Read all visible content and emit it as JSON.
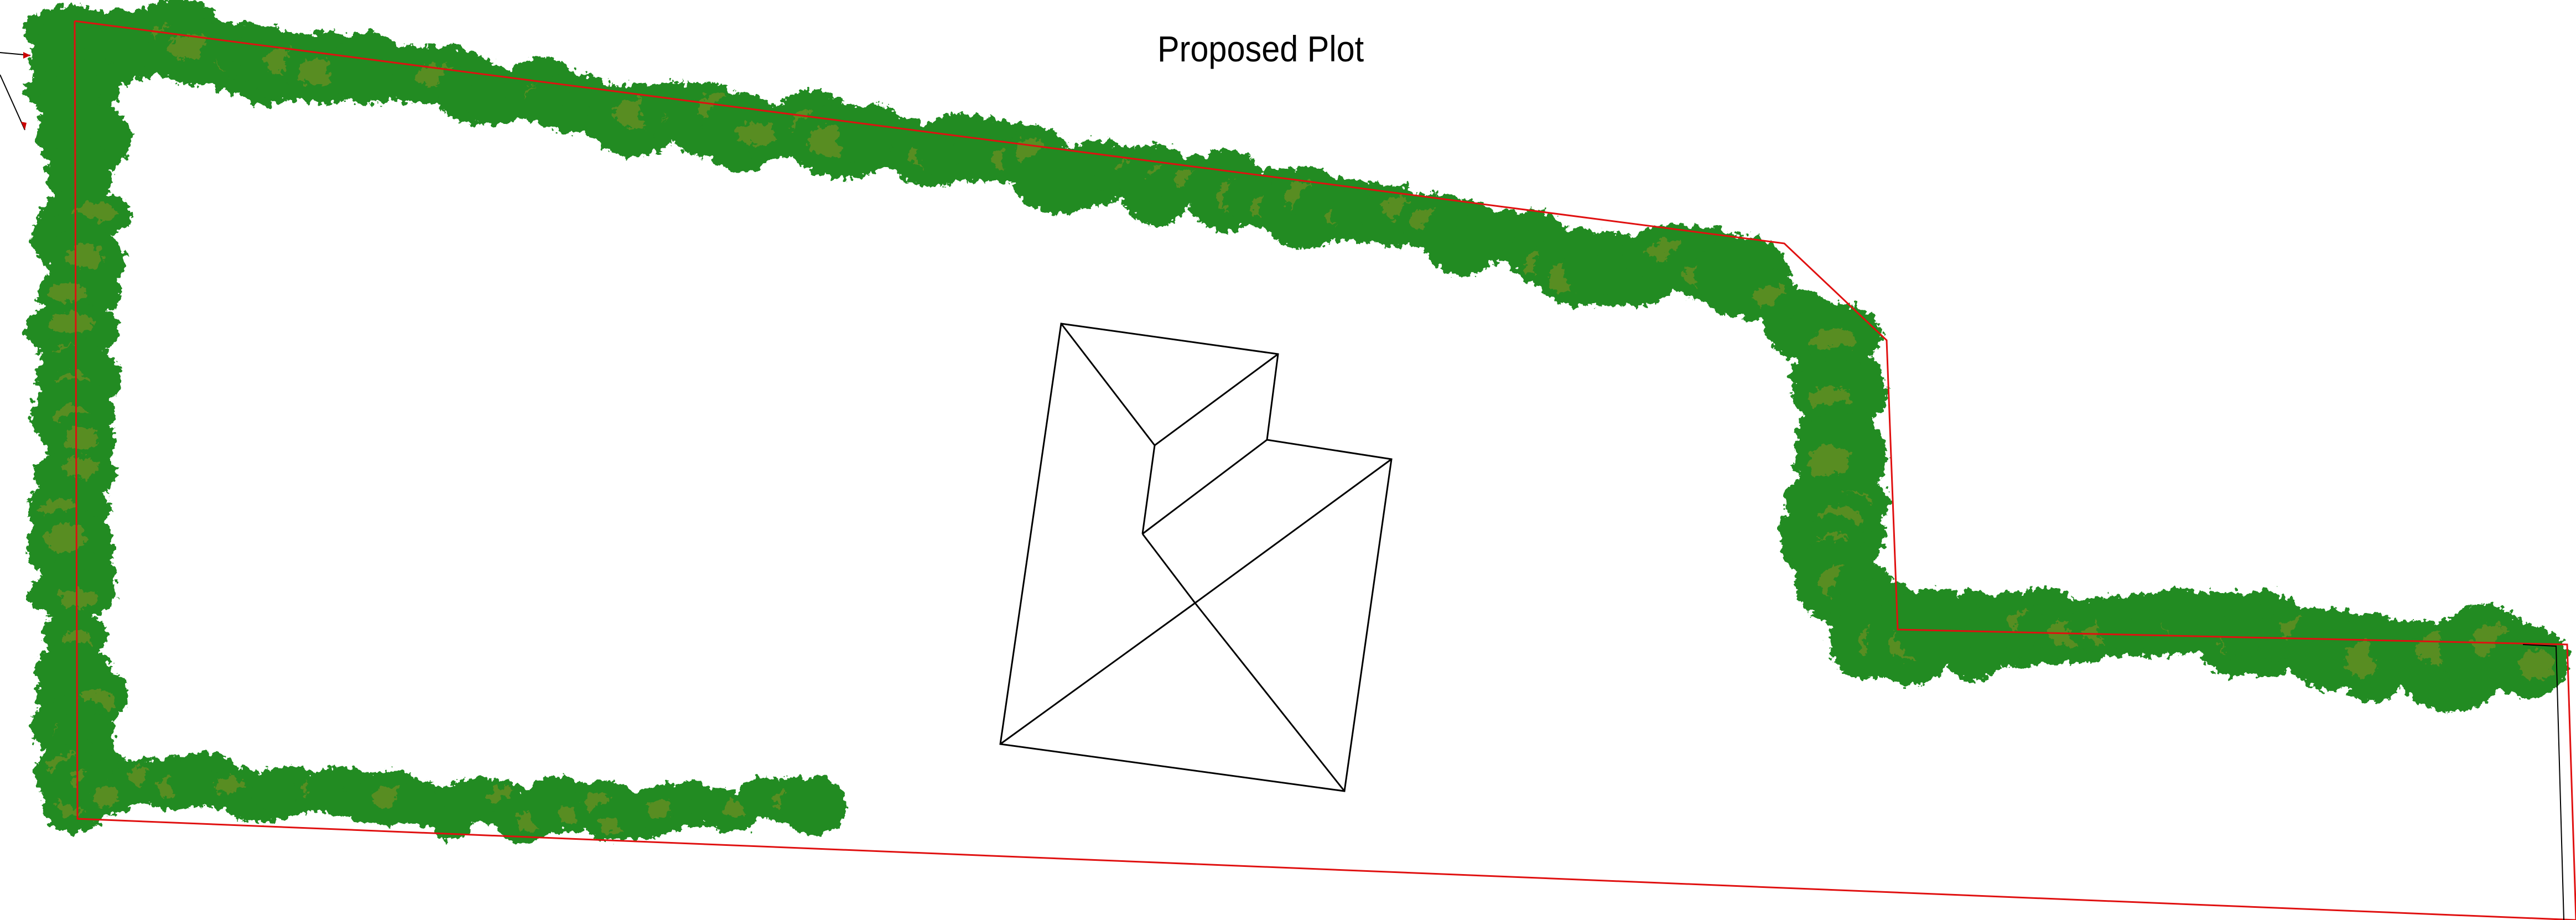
{
  "title": "Proposed Plot",
  "colors": {
    "boundary": "#e01010",
    "hedge": "#228b22",
    "hedge_highlight": "#6b8e23",
    "building_outline": "#000000",
    "background": "#ffffff"
  },
  "elements": {
    "boundary": "site-boundary-line",
    "hedges": [
      "west-hedge",
      "north-hedge",
      "east-hedge",
      "south-east-hedge",
      "south-west-hedge"
    ],
    "building": "house-roof-plan",
    "north_arrow": "north-arrow-icon"
  }
}
